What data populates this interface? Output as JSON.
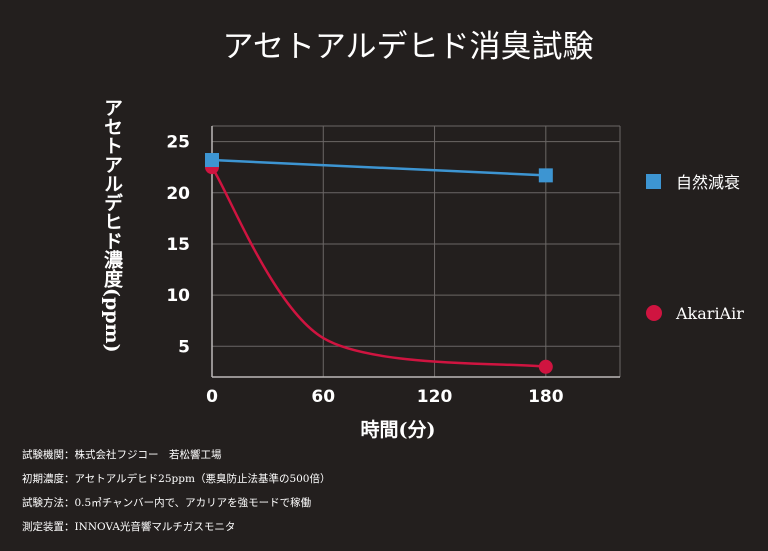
{
  "chart_data": {
    "type": "line",
    "title": "アセトアルデヒド消臭試験",
    "xlabel": "時間(分)",
    "ylabel": "アセトアルデヒド濃度(ppm)",
    "x_ticks": [
      0,
      60,
      120,
      180
    ],
    "y_ticks": [
      5,
      10,
      15,
      20,
      25
    ],
    "xlim": [
      0,
      220
    ],
    "ylim": [
      2,
      27.5
    ],
    "grid": true,
    "legend_position": "right",
    "series": [
      {
        "name": "自然減衰",
        "marker": "square",
        "color": "#3d95d2",
        "x": [
          0,
          180
        ],
        "values": [
          23.2,
          21.7
        ]
      },
      {
        "name": "AkariAir",
        "marker": "circle",
        "color": "#cf1440",
        "x": [
          0,
          60,
          180
        ],
        "values": [
          22.5,
          5.8,
          3.0
        ]
      }
    ]
  },
  "notes": [
    "試験機関：株式会社フジコー　若松響工場",
    "初期濃度：アセトアルデヒド25ppm（悪臭防止法基準の500倍）",
    "試験方法：0.5㎥チャンバー内で、アカリアを強モードで稼働",
    "測定装置：INNOVA光音響マルチガスモニタ"
  ]
}
